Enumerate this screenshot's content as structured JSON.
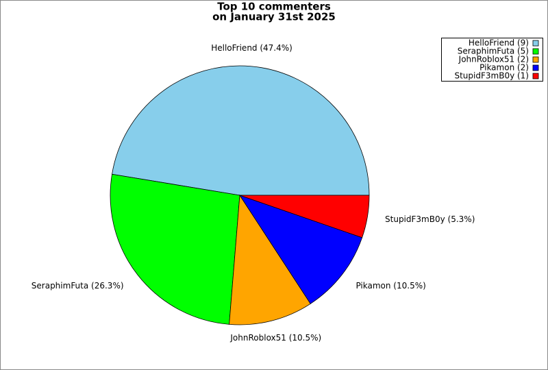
{
  "chart_data": {
    "type": "pie",
    "title": [
      "Top 10 commenters",
      "on January 31st 2025"
    ],
    "categories": [
      "HelloFriend (9)",
      "SeraphimFuta (5)",
      "JohnRoblox51 (2)",
      "Pikamon (2)",
      "StupidF3mB0y (1)"
    ],
    "values": [
      47.4,
      26.3,
      10.5,
      10.5,
      5.3
    ],
    "value_labels": [
      "HelloFriend (47.4%)",
      "SeraphimFuta (26.3%)",
      "JohnRoblox51 (10.5%)",
      "Pikamon (10.5%)",
      "StupidF3mB0y (5.3%)"
    ],
    "colors": [
      "#87ceeb",
      "#00ff00",
      "#ffa500",
      "#0000ff",
      "#ff0000"
    ],
    "legend": "upper right"
  }
}
